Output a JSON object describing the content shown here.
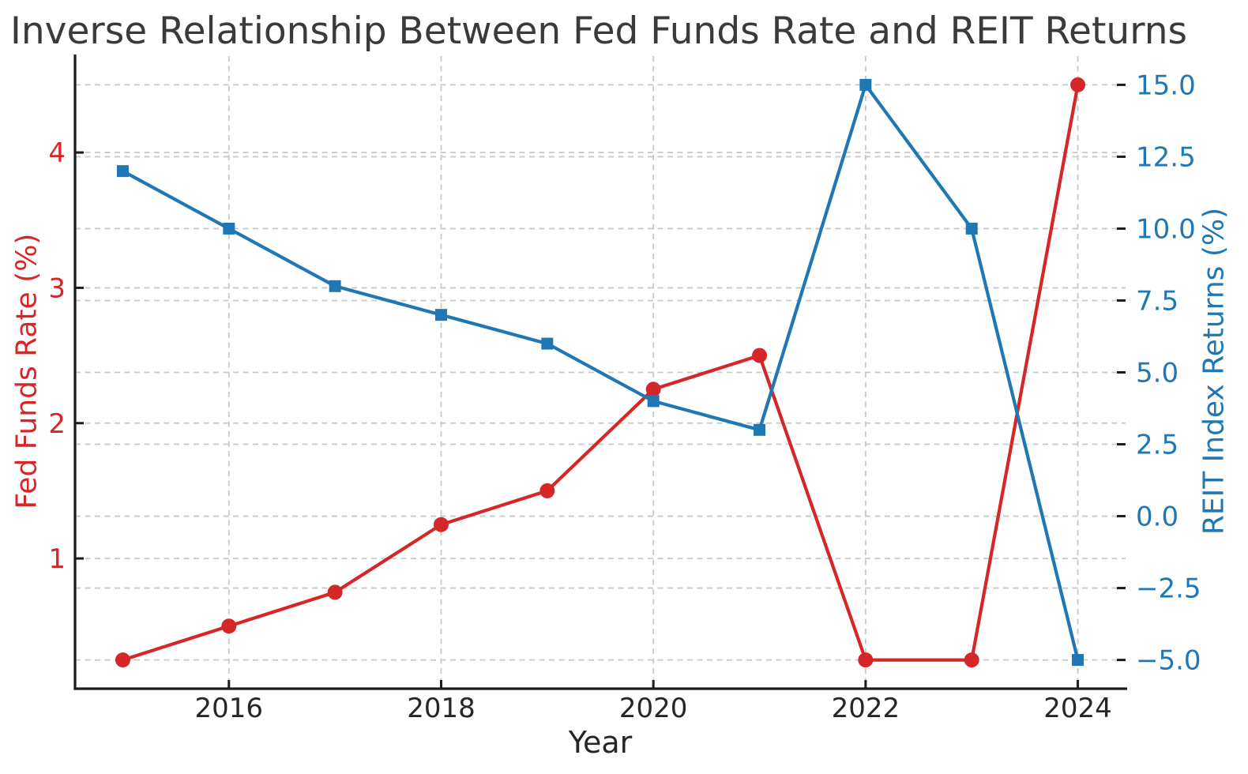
{
  "title": "Inverse Relationship Between Fed Funds Rate and REIT Returns",
  "chart_data": {
    "type": "line",
    "title": "Inverse Relationship Between Fed Funds Rate and REIT Returns",
    "xlabel": "Year",
    "grid": true,
    "grid_style": "dashed",
    "x": [
      2015,
      2016,
      2017,
      2018,
      2019,
      2020,
      2021,
      2022,
      2023,
      2024
    ],
    "series": [
      {
        "name": "Fed Funds Rate (%)",
        "axis": "left",
        "color": "#d62728",
        "marker": "circle",
        "values": [
          0.25,
          0.5,
          0.75,
          1.25,
          1.5,
          2.25,
          2.5,
          0.25,
          0.25,
          4.5
        ]
      },
      {
        "name": "REIT Index Returns (%)",
        "axis": "right",
        "color": "#1f77b4",
        "marker": "square",
        "values": [
          12,
          10,
          8,
          7,
          6,
          4,
          3,
          15,
          10,
          -5
        ]
      }
    ],
    "x_axis": {
      "label": "Year",
      "range": [
        2014.55,
        2024.45
      ],
      "ticks": [
        2016,
        2018,
        2020,
        2022,
        2024
      ],
      "tick_labels": [
        "2016",
        "2018",
        "2020",
        "2022",
        "2024"
      ],
      "tick_color": "#262626"
    },
    "left_axis": {
      "label": "Fed Funds Rate (%)",
      "range": [
        0.0375,
        4.7125
      ],
      "ticks": [
        1,
        2,
        3,
        4
      ],
      "tick_labels": [
        "1",
        "2",
        "3",
        "4"
      ],
      "tick_color": "#d62728"
    },
    "right_axis": {
      "label": "REIT Index Returns (%)",
      "range": [
        -6,
        16
      ],
      "ticks": [
        15,
        12.5,
        10,
        7.5,
        5,
        2.5,
        0,
        -2.5,
        -5
      ],
      "tick_labels": [
        "15.0",
        "12.5",
        "10.0",
        "7.5",
        "5.0",
        "2.5",
        "0.0",
        "−2.5",
        "−5.0"
      ],
      "tick_color": "#1f77b4"
    }
  },
  "colors": {
    "fed_funds": "#d62728",
    "reit": "#1f77b4",
    "grid": "#c9c9c9",
    "spine": "#1c1c1c",
    "title": "#3a3a3a",
    "background": "#ffffff"
  }
}
